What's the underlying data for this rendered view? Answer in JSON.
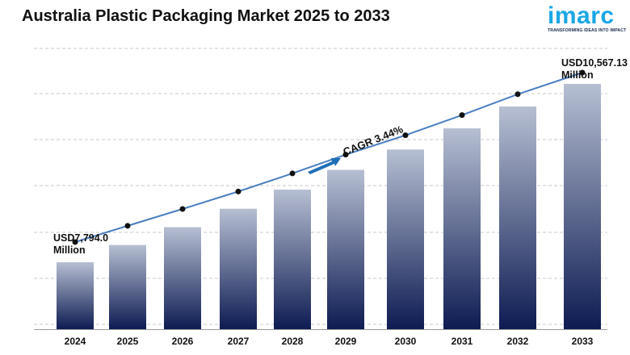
{
  "header": {
    "title": "Australia Plastic Packaging Market 2025 to 2033"
  },
  "logo": {
    "wordmark": "imarc",
    "tagline": "TRANSFORMING IDEAS INTO IMPACT"
  },
  "colors": {
    "bar_top": "#b6bfd2",
    "bar_bottom": "#0d1b52",
    "line": "#4a7fc1",
    "marker": "#111111",
    "arrow": "#1f6fb8",
    "logo_blue": "#1aa7e5",
    "logo_dot": "#e85a1b"
  },
  "chart_data": {
    "type": "bar",
    "title": "Australia Plastic Packaging Market 2025 to 2033",
    "categories": [
      "2024",
      "2025",
      "2026",
      "2027",
      "2028",
      "2029",
      "2030",
      "2031",
      "2032",
      "2033"
    ],
    "series": [
      {
        "values": [
          7794.0,
          8062,
          8339,
          8626,
          8923,
          9230,
          9547,
          9876,
          10216,
          10567.13
        ]
      }
    ],
    "overlay": "line-with-markers",
    "grid": true,
    "legend": "none",
    "annotations": {
      "start_value": "USD7,794.0",
      "start_unit": "Million",
      "end_value": "USD10,567.13",
      "end_unit": "Million",
      "cagr": "CAGR 3.44%"
    }
  }
}
